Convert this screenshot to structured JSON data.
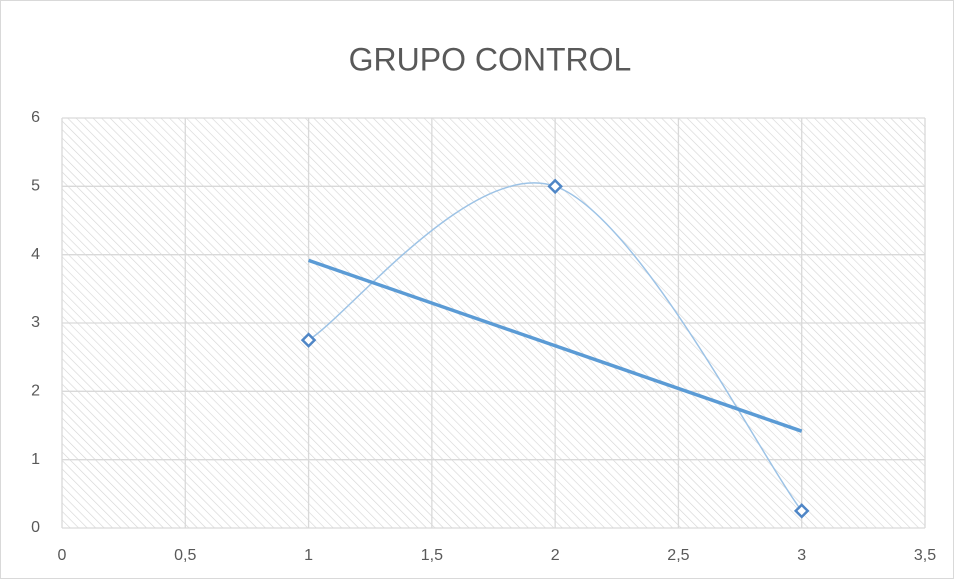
{
  "chart_data": {
    "type": "scatter",
    "title": "GRUPO CONTROL",
    "series": [
      {
        "x": [
          1,
          2,
          3
        ],
        "values": [
          2.75,
          5,
          0.25
        ],
        "color": "#4f86c6",
        "line_color": "#9dc3e6",
        "smooth": true,
        "trendline": "linear",
        "trendline_color": "#5b9bd5"
      }
    ],
    "xlim": [
      0,
      3.5
    ],
    "xticks": [
      0,
      {
        "value": 0.5,
        "label": "0,5"
      },
      1,
      {
        "value": 1.5,
        "label": "1,5"
      },
      2,
      {
        "value": 2.5,
        "label": "2,5"
      },
      3,
      {
        "value": 3.5,
        "label": "3,5"
      }
    ],
    "ylim": [
      0,
      6
    ],
    "yticks": [
      0,
      1,
      2,
      3,
      4,
      5,
      6
    ],
    "grid": true
  }
}
